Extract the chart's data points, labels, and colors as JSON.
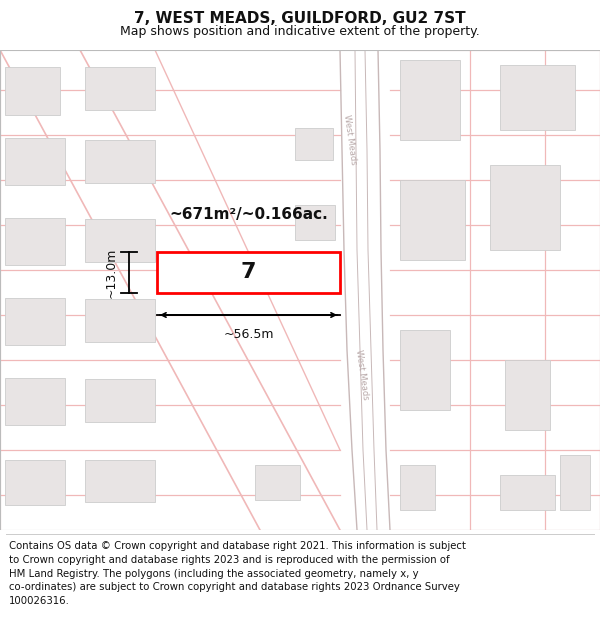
{
  "title": "7, WEST MEADS, GUILDFORD, GU2 7ST",
  "subtitle": "Map shows position and indicative extent of the property.",
  "footer": "Contains OS data © Crown copyright and database right 2021. This information is subject\nto Crown copyright and database rights 2023 and is reproduced with the permission of\nHM Land Registry. The polygons (including the associated geometry, namely x, y\nco-ordinates) are subject to Crown copyright and database rights 2023 Ordnance Survey\n100026316.",
  "map_bg": "#ffffff",
  "road_fill": "#ffffff",
  "road_edge": "#c8b8b8",
  "road_outer": "#d8c8c8",
  "line_color": "#f0b8b8",
  "building_color": "#e8e4e4",
  "building_edge": "#cccccc",
  "highlight_color": "#ff0000",
  "text_color": "#111111",
  "road_label_color": "#b8a8a8",
  "area_text": "~671m²/~0.166ac.",
  "property_label": "7",
  "dim_width": "~56.5m",
  "dim_height": "~13.0m",
  "title_fontsize": 11,
  "subtitle_fontsize": 9,
  "footer_fontsize": 7.3
}
